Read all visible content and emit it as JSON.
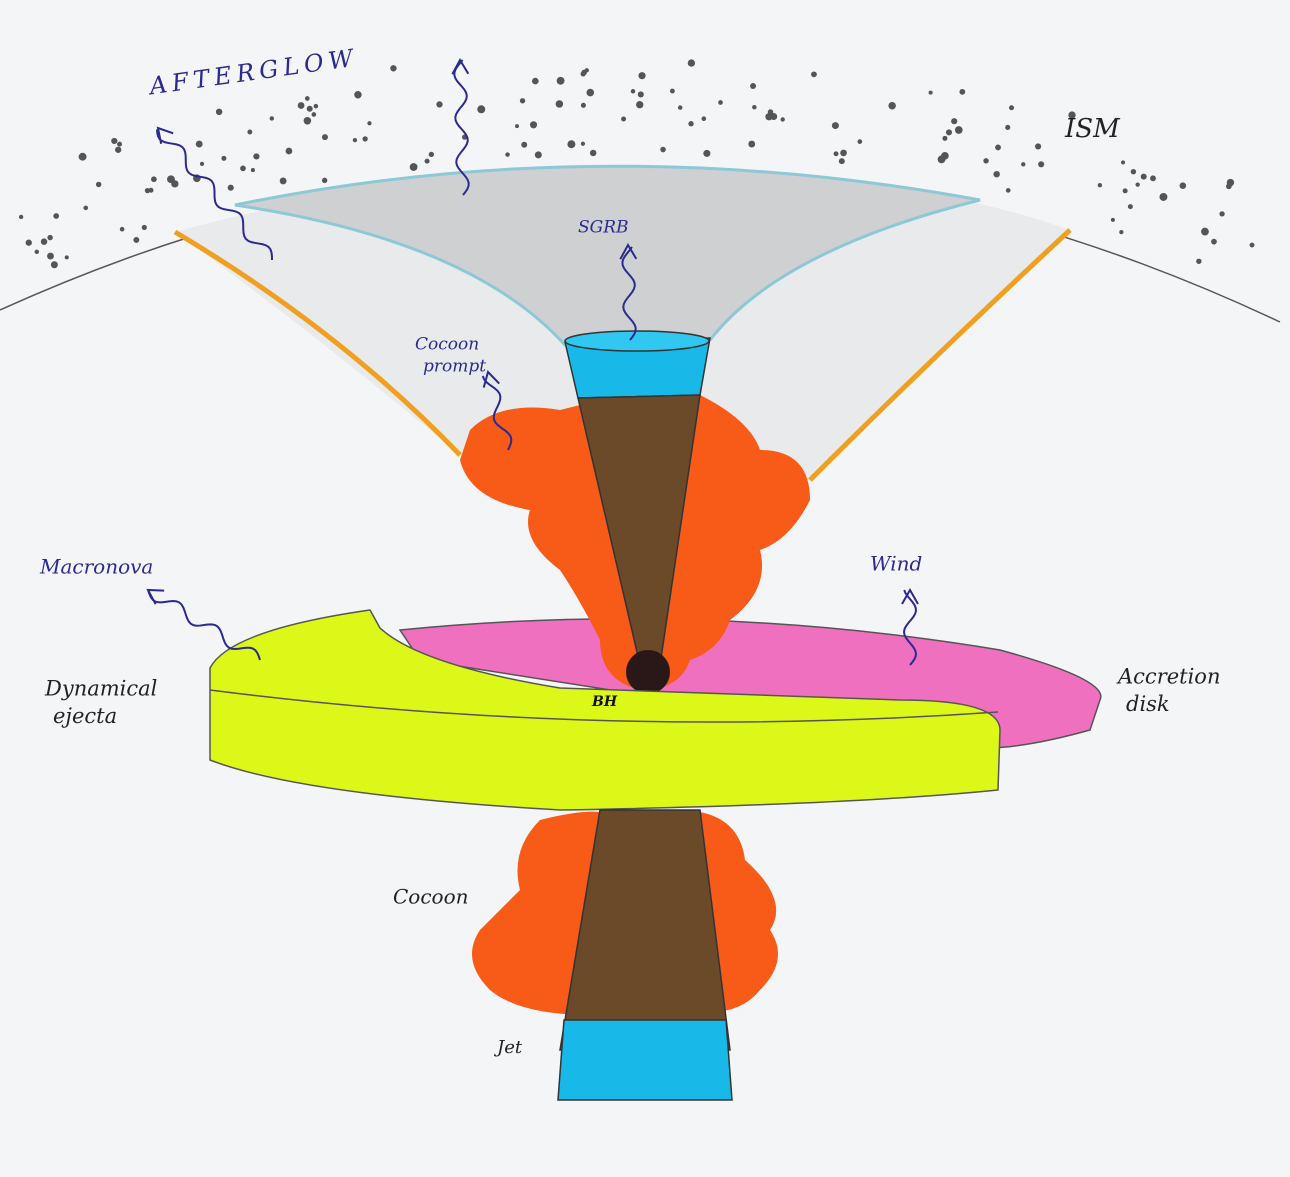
{
  "labels": [
    {
      "lines": [
        "AFTERGLOW"
      ]
    },
    {
      "lines": [
        "ISM"
      ]
    },
    {
      "lines": [
        "SGRB"
      ]
    },
    {
      "lines": [
        "Cocoon",
        "prompt"
      ]
    },
    {
      "lines": [
        "Macronova"
      ]
    },
    {
      "lines": [
        "Wind"
      ]
    },
    {
      "lines": [
        "Dynamical",
        "ejecta"
      ]
    },
    {
      "lines": [
        "Accretion",
        "disk"
      ]
    },
    {
      "lines": [
        "BH"
      ]
    },
    {
      "lines": [
        "Cocoon"
      ]
    },
    {
      "lines": [
        "Jet"
      ]
    }
  ]
}
